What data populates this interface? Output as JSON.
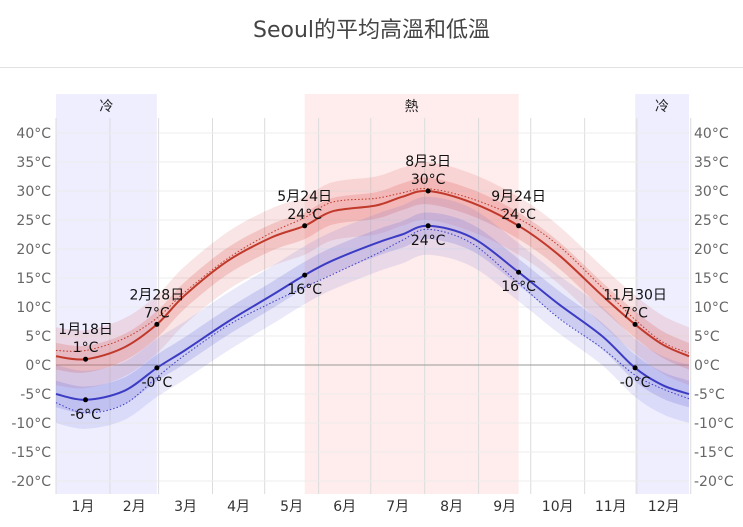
{
  "title": "Seoul的平均高溫和低溫",
  "chart_data": {
    "type": "line",
    "title": "Seoul的平均高溫和低溫",
    "xlabel": "",
    "ylabel": "",
    "ylim": [
      -22,
      44
    ],
    "y_ticks": [
      -20,
      -15,
      -10,
      -5,
      0,
      5,
      10,
      15,
      20,
      25,
      30,
      35,
      40
    ],
    "y_unit": "°C",
    "x_ticks": [
      "1月",
      "2月",
      "3月",
      "4月",
      "5月",
      "6月",
      "7月",
      "8月",
      "9月",
      "10月",
      "11月",
      "12月"
    ],
    "grid": true,
    "seasons": [
      {
        "label": "冷",
        "start_day": 1,
        "end_day": 59,
        "color": "#eeeeff"
      },
      {
        "label": "熱",
        "start_day": 144,
        "end_day": 267,
        "color": "#ffecec"
      },
      {
        "label": "冷",
        "start_day": 334,
        "end_day": 365,
        "color": "#eeeeff"
      }
    ],
    "series": [
      {
        "role": "high",
        "color": "#c0392b",
        "days": [
          1,
          18,
          40,
          59,
          75,
          100,
          125,
          144,
          160,
          185,
          200,
          215,
          240,
          267,
          290,
          315,
          334,
          350,
          365
        ],
        "values": [
          1.5,
          1,
          3,
          7,
          12,
          18,
          22,
          24,
          26.5,
          27.5,
          29,
          30,
          28,
          24,
          19,
          12,
          7,
          3.5,
          1.5
        ]
      },
      {
        "role": "low",
        "color": "#3b3bc4",
        "days": [
          1,
          18,
          40,
          59,
          75,
          100,
          125,
          144,
          160,
          185,
          200,
          215,
          240,
          267,
          290,
          315,
          334,
          350,
          365
        ],
        "values": [
          -5,
          -6,
          -4.5,
          -0.5,
          2.5,
          7.5,
          12,
          15.5,
          18,
          21,
          22.5,
          24,
          22,
          16,
          10.5,
          5,
          -0.5,
          -3.5,
          -5
        ]
      }
    ],
    "annotations": [
      {
        "date": "1月18日",
        "value": "1°C",
        "day": 18,
        "y": 1,
        "side": "above"
      },
      {
        "date": "",
        "value": "-6°C",
        "day": 18,
        "y": -6,
        "side": "below"
      },
      {
        "date": "2月28日",
        "value": "7°C",
        "day": 59,
        "y": 7,
        "side": "above"
      },
      {
        "date": "",
        "value": "-0°C",
        "day": 59,
        "y": -0.5,
        "side": "below"
      },
      {
        "date": "5月24日",
        "value": "24°C",
        "day": 144,
        "y": 24,
        "side": "above"
      },
      {
        "date": "",
        "value": "16°C",
        "day": 144,
        "y": 15.5,
        "side": "below"
      },
      {
        "date": "8月3日",
        "value": "30°C",
        "day": 215,
        "y": 30,
        "side": "above"
      },
      {
        "date": "",
        "value": "24°C",
        "day": 215,
        "y": 24,
        "side": "below"
      },
      {
        "date": "9月24日",
        "value": "24°C",
        "day": 267,
        "y": 24,
        "side": "above"
      },
      {
        "date": "",
        "value": "16°C",
        "day": 267,
        "y": 16,
        "side": "below"
      },
      {
        "date": "11月30日",
        "value": "7°C",
        "day": 334,
        "y": 7,
        "side": "above"
      },
      {
        "date": "",
        "value": "-0°C",
        "day": 334,
        "y": -0.5,
        "side": "below"
      }
    ]
  }
}
